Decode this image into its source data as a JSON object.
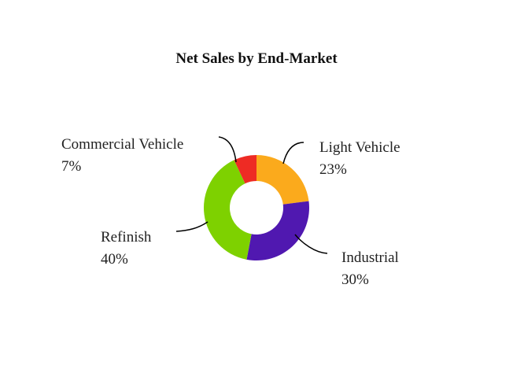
{
  "chart_data": {
    "type": "pie",
    "variant": "donut",
    "title": "Net Sales by End-Market",
    "slices": [
      {
        "label": "Light Vehicle",
        "value": 23,
        "value_label": "23%",
        "color": "#FBAA1C"
      },
      {
        "label": "Industrial",
        "value": 30,
        "value_label": "30%",
        "color": "#5018B0"
      },
      {
        "label": "Refinish",
        "value": 40,
        "value_label": "40%",
        "color": "#7ED100"
      },
      {
        "label": "Commercial Vehicle",
        "value": 7,
        "value_label": "7%",
        "color": "#EE2B24"
      }
    ],
    "legend": "none",
    "labels": "outside with leader lines"
  }
}
